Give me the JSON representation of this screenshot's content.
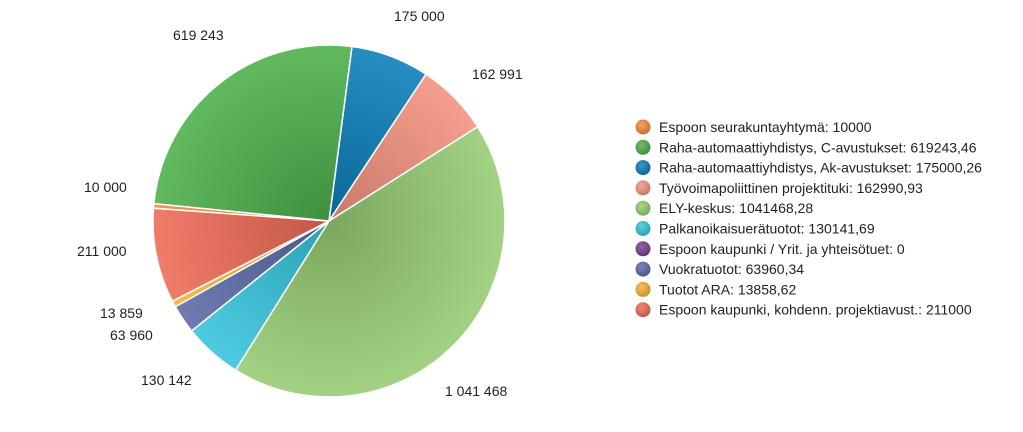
{
  "chart_data": {
    "type": "pie",
    "title": "",
    "start_angle_deg": 7.5,
    "direction": "clockwise",
    "legend_position": "right",
    "slices": [
      {
        "name": "Raha-automaattiyhdistys, Ak-avustukset: 175000,26",
        "value": 175000.26,
        "label": "175 000",
        "color": "#0a7db8"
      },
      {
        "name": "Työvoimapoliittinen projektituki: 162990,93",
        "value": 162990.93,
        "label": "162 991",
        "color": "#f4927f"
      },
      {
        "name": "ELY-keskus: 1041468,28",
        "value": 1041468.28,
        "label": "1 041 468",
        "color": "#96cc73"
      },
      {
        "name": "Palkanoikaisuerätuotot: 130141,69",
        "value": 130141.69,
        "label": "130 142",
        "color": "#36c4dc"
      },
      {
        "name": "Vuokratuotot: 63960,34",
        "value": 63960.34,
        "label": "63 960",
        "color": "#5c6aa6"
      },
      {
        "name": "Tuotot ARA: 13858,62",
        "value": 13858.62,
        "label": "13 859",
        "color": "#f9b233"
      },
      {
        "name": "Espoon kaupunki, kohdenn. projektiavust.: 211000",
        "value": 211000,
        "label": "211 000",
        "color": "#ee6a55"
      },
      {
        "name": "Espoon seurakuntayhtymä: 10000",
        "value": 10000,
        "label": "10 000",
        "color": "#f28b3c"
      },
      {
        "name": "Raha-automaattiyhdistys, C-avustukset: 619243,46",
        "value": 619243.46,
        "label": "619 243",
        "color": "#4caf4a"
      },
      {
        "name": "Espoon kaupunki / Yrit. ja yhteisötuet: 0",
        "value": 0,
        "label": "",
        "color": "#7b3f8c"
      }
    ],
    "legend": [
      {
        "label": "Espoon seurakuntayhtymä: 10000",
        "color": "#f28b3c"
      },
      {
        "label": "Raha-automaattiyhdistys, C-avustukset: 619243,46",
        "color": "#4caf4a"
      },
      {
        "label": "Raha-automaattiyhdistys, Ak-avustukset: 175000,26",
        "color": "#0a7db8"
      },
      {
        "label": "Työvoimapoliittinen projektituki: 162990,93",
        "color": "#f4927f"
      },
      {
        "label": "ELY-keskus: 1041468,28",
        "color": "#96cc73"
      },
      {
        "label": "Palkanoikaisuerätuotot: 130141,69",
        "color": "#36c4dc"
      },
      {
        "label": "Espoon kaupunki / Yrit. ja yhteisötuet: 0",
        "color": "#7b3f8c"
      },
      {
        "label": "Vuokratuotot: 63960,34",
        "color": "#5c6aa6"
      },
      {
        "label": "Tuotot ARA: 13858,62",
        "color": "#f9b233"
      },
      {
        "label": "Espoon kaupunki, kohdenn. projektiavust.: 211000",
        "color": "#ee6a55"
      }
    ]
  }
}
